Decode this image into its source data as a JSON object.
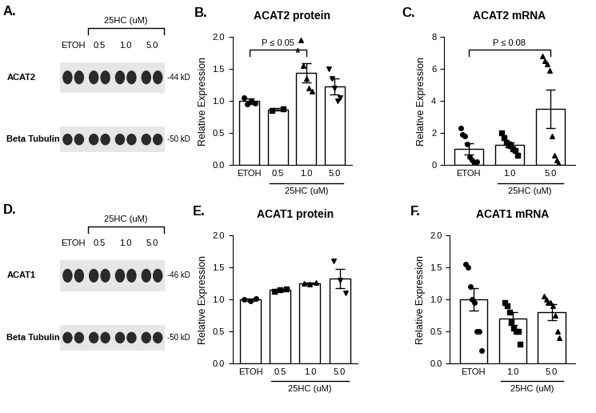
{
  "chart_data": [
    {
      "type": "bar",
      "panel": "B.",
      "title": "ACAT2 protein",
      "y_label": "Relative Expression",
      "categories": [
        "ETOH",
        "0.5",
        "1.0",
        "5.0"
      ],
      "values": [
        1.0,
        0.87,
        1.44,
        1.23
      ],
      "errors": [
        0.04,
        0.02,
        0.15,
        0.12
      ],
      "points": [
        {
          "marker": "circle",
          "values": [
            1.05,
            0.95,
            1.0,
            0.97
          ]
        },
        {
          "marker": "square",
          "values": [
            0.86,
            0.88
          ]
        },
        {
          "marker": "triangle_up",
          "values": [
            1.95,
            1.55,
            1.35,
            1.2,
            1.15
          ]
        },
        {
          "marker": "triangle_down",
          "values": [
            1.5,
            1.35,
            1.2,
            1.0,
            1.05
          ]
        }
      ],
      "group": {
        "label": "25HC (uM)",
        "categories": [
          "0.5",
          "1.0",
          "5.0"
        ]
      },
      "annotations": [
        {
          "text": "P ≤ 0.05",
          "from": "ETOH",
          "to": "1.0"
        },
        {
          "text": "*",
          "at": "1.0"
        }
      ],
      "color": "#ffffff",
      "ylim": [
        0,
        2.0
      ],
      "yticks": [
        {
          "value": 0,
          "label": "0.0"
        },
        0.5,
        {
          "value": 1.0,
          "label": "1.0"
        },
        1.5,
        {
          "value": 2.0,
          "label": "2.0"
        }
      ]
    },
    {
      "type": "bar",
      "panel": "C.",
      "title": "ACAT2 mRNA",
      "y_label": "Relative Expression",
      "categories": [
        "ETOH",
        "1.0",
        "5.0"
      ],
      "values": [
        1.0,
        1.25,
        3.5
      ],
      "errors": [
        0.35,
        0.15,
        1.2
      ],
      "points": [
        {
          "marker": "circle",
          "values": [
            2.3,
            1.9,
            1.8,
            1.3,
            0.5,
            0.3,
            0.1,
            0.2
          ]
        },
        {
          "marker": "square",
          "values": [
            2.0,
            1.7,
            1.4,
            1.3,
            1.2,
            1.0,
            0.9,
            0.6
          ]
        },
        {
          "marker": "triangle_up",
          "values": [
            6.8,
            6.5,
            6.3,
            5.9,
            1.8,
            0.6,
            0.3,
            0.1
          ]
        }
      ],
      "group": {
        "label": "25HC (uM)",
        "categories": [
          "1.0",
          "5.0"
        ]
      },
      "annotations": [
        {
          "text": "P ≤ 0.08",
          "from": "ETOH",
          "to": "5.0"
        }
      ],
      "color": "#ffffff",
      "ylim": [
        0,
        8
      ],
      "yticks": [
        0,
        2,
        4,
        6,
        8
      ]
    },
    {
      "type": "bar",
      "panel": "E.",
      "title": "ACAT1 protein",
      "y_label": "Relative Expression",
      "categories": [
        "ETOH",
        "0.5",
        "1.0",
        "5.0"
      ],
      "values": [
        1.0,
        1.15,
        1.25,
        1.33
      ],
      "errors": [
        0.02,
        0.02,
        0.01,
        0.15
      ],
      "points": [
        {
          "marker": "circle",
          "values": [
            1.0,
            0.98,
            1.02
          ]
        },
        {
          "marker": "square",
          "values": [
            1.13,
            1.15,
            1.17
          ]
        },
        {
          "marker": "triangle_up",
          "values": [
            1.25,
            1.24,
            1.26
          ]
        },
        {
          "marker": "triangle_down",
          "values": [
            1.6,
            1.3,
            1.1
          ]
        }
      ],
      "group": {
        "label": "25HC (uM)",
        "categories": [
          "0.5",
          "1.0",
          "5.0"
        ]
      },
      "annotations": [],
      "color": "#ffffff",
      "ylim": [
        0,
        2.0
      ],
      "yticks": [
        {
          "value": 0,
          "label": "0.0"
        },
        0.5,
        {
          "value": 1.0,
          "label": "1.0"
        },
        1.5,
        {
          "value": 2.0,
          "label": "2.0"
        }
      ]
    },
    {
      "type": "bar",
      "panel": "F.",
      "title": "ACAT1 mRNA",
      "y_label": "Relative Expression",
      "categories": [
        "ETOH",
        "1.0",
        "5.0"
      ],
      "values": [
        1.0,
        0.7,
        0.8
      ],
      "errors": [
        0.18,
        0.1,
        0.12
      ],
      "points": [
        {
          "marker": "circle",
          "values": [
            1.55,
            1.5,
            1.2,
            1.0,
            0.95,
            0.5,
            0.5,
            0.2
          ]
        },
        {
          "marker": "square",
          "values": [
            0.95,
            0.9,
            0.8,
            0.65,
            0.55,
            0.5,
            0.5,
            0.3
          ]
        },
        {
          "marker": "triangle_up",
          "values": [
            1.05,
            1.0,
            0.95,
            0.95,
            0.9,
            0.75,
            0.5,
            0.4
          ]
        }
      ],
      "group": {
        "label": "25HC (uM)",
        "categories": [
          "1.0",
          "5.0"
        ]
      },
      "annotations": [],
      "color": "#ffffff",
      "ylim": [
        0,
        2.0
      ],
      "yticks": [
        {
          "value": 0,
          "label": "0.0"
        },
        0.5,
        {
          "value": 1.0,
          "label": "1.0"
        },
        1.5,
        {
          "value": 2.0,
          "label": "2.0"
        }
      ]
    }
  ],
  "blots": [
    {
      "panel": "A.",
      "lanes": [
        "ETOH",
        "0.5",
        "1.0",
        "5.0"
      ],
      "group": {
        "label": "25HC (uM)",
        "lanes": [
          "0.5",
          "1.0",
          "5.0"
        ]
      },
      "rows": [
        {
          "label": "ACAT2",
          "size": "-44 kD"
        },
        {
          "label": "Beta Tubulin",
          "size": "-50 kD"
        }
      ]
    },
    {
      "panel": "D.",
      "lanes": [
        "ETOH",
        "0.5",
        "1.0",
        "5.0"
      ],
      "group": {
        "label": "25HC (uM)",
        "lanes": [
          "0.5",
          "1.0",
          "5.0"
        ]
      },
      "rows": [
        {
          "label": "ACAT1",
          "size": "-46 kD"
        },
        {
          "label": "Beta Tubulin",
          "size": "-50 kD"
        }
      ]
    }
  ]
}
